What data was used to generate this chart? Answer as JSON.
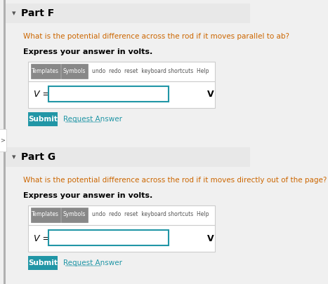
{
  "bg_color": "#f0f0f0",
  "white": "#ffffff",
  "teal": "#2196A6",
  "border_color": "#cccccc",
  "input_border": "#2196A6",
  "dark_gray": "#555555",
  "orange_text": "#cc6600",
  "black": "#000000",
  "link_blue": "#2196A6",
  "header_bg": "#e8e8e8",
  "part_f_header": "Part F",
  "part_g_header": "Part G",
  "question_f": "What is the potential difference across the rod if it moves parallel to ab?",
  "question_g": "What is the potential difference across the rod if it moves directly out of the page?",
  "express_label": "Express your answer in volts.",
  "v_label": "V =",
  "v_unit": "V",
  "submit_label": "Submit",
  "request_label": "Request Answer",
  "arrow_char": "▾",
  "sidebar_color": "#b0b0b0",
  "btn_gray": "#888888"
}
